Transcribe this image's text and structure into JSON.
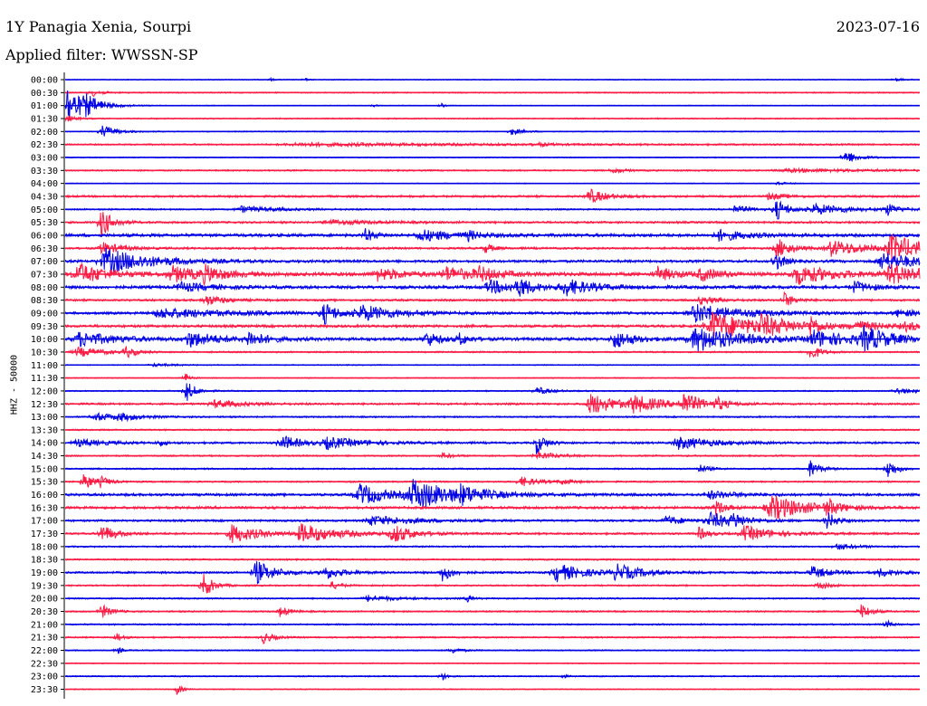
{
  "header": {
    "station": "1Y Panagia Xenia, Sourpi",
    "date": "2023-07-16",
    "filter": "Applied filter: WWSSN-SP"
  },
  "chart_data": {
    "type": "line",
    "title": "1Y Panagia Xenia, Sourpi",
    "date": "2023-07-16",
    "filter": "WWSSN-SP",
    "ylabel": "HHZ - 50000",
    "colors": {
      "even_rows": "#0000e6",
      "odd_rows": "#ff1a44",
      "axis": "#000000"
    },
    "x_span_minutes": 30,
    "traces": [
      {
        "label": "00:00",
        "noise": 0.8,
        "events": [
          [
            0.24,
            2.5,
            0.003
          ],
          [
            0.28,
            2.2,
            0.003
          ],
          [
            0.97,
            2.0,
            0.01
          ]
        ]
      },
      {
        "label": "00:30",
        "noise": 1.2,
        "events": [
          [
            0.03,
            5.0,
            0.01
          ]
        ]
      },
      {
        "label": "01:00",
        "noise": 0.8,
        "events": [
          [
            0.0,
            28.0,
            0.015
          ],
          [
            0.02,
            10.0,
            0.02
          ],
          [
            0.36,
            3.0,
            0.003
          ],
          [
            0.44,
            3.0,
            0.003
          ]
        ]
      },
      {
        "label": "01:30",
        "noise": 1.2,
        "events": [
          [
            0.0,
            4.0,
            0.01
          ]
        ]
      },
      {
        "label": "02:00",
        "noise": 1.0,
        "events": [
          [
            0.04,
            9.0,
            0.015
          ],
          [
            0.52,
            4.5,
            0.012
          ]
        ]
      },
      {
        "label": "02:30",
        "noise": 1.5,
        "events": [
          [
            0.25,
            2.0,
            0.2
          ],
          [
            0.55,
            2.5,
            0.01
          ]
        ]
      },
      {
        "label": "03:00",
        "noise": 1.0,
        "events": [
          [
            0.91,
            9.0,
            0.015
          ]
        ]
      },
      {
        "label": "03:30",
        "noise": 1.5,
        "events": [
          [
            0.64,
            4.0,
            0.01
          ],
          [
            0.83,
            2.0,
            0.1
          ]
        ]
      },
      {
        "label": "04:00",
        "noise": 0.8,
        "events": [
          [
            0.83,
            3.0,
            0.01
          ]
        ]
      },
      {
        "label": "04:30",
        "noise": 2.0,
        "events": [
          [
            0.61,
            10.0,
            0.018
          ],
          [
            0.82,
            4.0,
            0.02
          ]
        ]
      },
      {
        "label": "05:00",
        "noise": 1.5,
        "events": [
          [
            0.83,
            14.0,
            0.012
          ],
          [
            0.2,
            4.0,
            0.04
          ],
          [
            0.87,
            7.0,
            0.04
          ],
          [
            0.96,
            8.0,
            0.012
          ],
          [
            0.78,
            5.0,
            0.02
          ]
        ]
      },
      {
        "label": "05:30",
        "noise": 2.0,
        "events": [
          [
            0.04,
            20.0,
            0.012
          ],
          [
            0.3,
            3.0,
            0.05
          ]
        ]
      },
      {
        "label": "06:00",
        "noise": 3.0,
        "events": [
          [
            0.35,
            8.0,
            0.01
          ],
          [
            0.41,
            7.0,
            0.04
          ],
          [
            0.76,
            7.0,
            0.03
          ],
          [
            0.47,
            5.0,
            0.01
          ]
        ]
      },
      {
        "label": "06:30",
        "noise": 2.0,
        "events": [
          [
            0.04,
            8.0,
            0.02
          ],
          [
            0.83,
            14.0,
            0.015
          ],
          [
            0.89,
            10.0,
            0.04
          ],
          [
            0.96,
            16.0,
            0.04
          ],
          [
            0.49,
            6.0,
            0.01
          ]
        ]
      },
      {
        "label": "07:00",
        "noise": 2.5,
        "events": [
          [
            0.04,
            16.0,
            0.05
          ],
          [
            0.83,
            12.0,
            0.01
          ],
          [
            0.95,
            12.0,
            0.04
          ]
        ]
      },
      {
        "label": "07:30",
        "noise": 3.5,
        "events": [
          [
            0.01,
            14.0,
            0.03
          ],
          [
            0.12,
            10.0,
            0.03
          ],
          [
            0.16,
            9.0,
            0.02
          ],
          [
            0.36,
            8.0,
            0.03
          ],
          [
            0.44,
            9.0,
            0.03
          ],
          [
            0.48,
            8.0,
            0.02
          ],
          [
            0.69,
            9.0,
            0.02
          ],
          [
            0.74,
            8.0,
            0.02
          ],
          [
            0.85,
            12.0,
            0.04
          ],
          [
            0.96,
            12.0,
            0.04
          ]
        ]
      },
      {
        "label": "08:00",
        "noise": 3.0,
        "events": [
          [
            0.13,
            6.0,
            0.03
          ],
          [
            0.49,
            8.0,
            0.04
          ],
          [
            0.53,
            12.0,
            0.01
          ],
          [
            0.58,
            10.0,
            0.03
          ],
          [
            0.92,
            7.0,
            0.02
          ]
        ]
      },
      {
        "label": "08:30",
        "noise": 2.0,
        "events": [
          [
            0.16,
            7.0,
            0.02
          ],
          [
            0.74,
            5.0,
            0.02
          ],
          [
            0.84,
            10.0,
            0.01
          ]
        ]
      },
      {
        "label": "09:00",
        "noise": 2.5,
        "events": [
          [
            0.1,
            6.0,
            0.08
          ],
          [
            0.3,
            14.0,
            0.015
          ],
          [
            0.34,
            10.0,
            0.04
          ],
          [
            0.73,
            12.0,
            0.05
          ],
          [
            0.97,
            4.0,
            0.03
          ]
        ]
      },
      {
        "label": "09:30",
        "noise": 2.5,
        "events": [
          [
            0.75,
            18.0,
            0.05
          ],
          [
            0.81,
            10.0,
            0.03
          ],
          [
            0.87,
            12.0,
            0.01
          ],
          [
            0.92,
            6.0,
            0.03
          ],
          [
            0.98,
            5.0,
            0.02
          ]
        ]
      },
      {
        "label": "10:00",
        "noise": 3.0,
        "events": [
          [
            0.01,
            9.0,
            0.04
          ],
          [
            0.14,
            10.0,
            0.03
          ],
          [
            0.21,
            10.0,
            0.02
          ],
          [
            0.42,
            10.0,
            0.015
          ],
          [
            0.46,
            7.0,
            0.01
          ],
          [
            0.64,
            12.0,
            0.02
          ],
          [
            0.73,
            16.0,
            0.05
          ],
          [
            0.87,
            10.0,
            0.04
          ],
          [
            0.93,
            14.0,
            0.03
          ]
        ]
      },
      {
        "label": "10:30",
        "noise": 1.5,
        "events": [
          [
            0.01,
            6.0,
            0.03
          ],
          [
            0.07,
            7.0,
            0.01
          ],
          [
            0.87,
            12.0,
            0.01
          ]
        ]
      },
      {
        "label": "11:00",
        "noise": 1.0,
        "events": [
          [
            0.1,
            2.0,
            0.02
          ]
        ]
      },
      {
        "label": "11:30",
        "noise": 1.0,
        "events": [
          [
            0.14,
            8.0,
            0.005
          ]
        ]
      },
      {
        "label": "12:00",
        "noise": 1.2,
        "events": [
          [
            0.14,
            14.0,
            0.01
          ],
          [
            0.55,
            5.0,
            0.015
          ],
          [
            0.97,
            4.0,
            0.02
          ]
        ]
      },
      {
        "label": "12:30",
        "noise": 2.0,
        "events": [
          [
            0.17,
            5.0,
            0.03
          ],
          [
            0.61,
            14.0,
            0.03
          ],
          [
            0.66,
            10.0,
            0.03
          ],
          [
            0.72,
            14.0,
            0.02
          ],
          [
            0.76,
            8.0,
            0.01
          ]
        ]
      },
      {
        "label": "13:00",
        "noise": 1.5,
        "events": [
          [
            0.03,
            5.0,
            0.03
          ],
          [
            0.06,
            4.0,
            0.02
          ]
        ]
      },
      {
        "label": "13:30",
        "noise": 1.5,
        "events": []
      },
      {
        "label": "14:00",
        "noise": 2.0,
        "events": [
          [
            0.01,
            5.0,
            0.03
          ],
          [
            0.25,
            10.0,
            0.02
          ],
          [
            0.3,
            7.0,
            0.04
          ],
          [
            0.55,
            14.0,
            0.01
          ],
          [
            0.71,
            8.0,
            0.04
          ],
          [
            0.11,
            5.0,
            0.005
          ]
        ]
      },
      {
        "label": "14:30",
        "noise": 1.5,
        "events": [
          [
            0.44,
            4.0,
            0.01
          ],
          [
            0.55,
            5.0,
            0.02
          ]
        ]
      },
      {
        "label": "15:00",
        "noise": 1.5,
        "events": [
          [
            0.74,
            6.0,
            0.01
          ],
          [
            0.87,
            12.0,
            0.01
          ],
          [
            0.96,
            14.0,
            0.01
          ]
        ]
      },
      {
        "label": "15:30",
        "noise": 1.5,
        "events": [
          [
            0.02,
            12.0,
            0.01
          ],
          [
            0.04,
            6.0,
            0.01
          ],
          [
            0.53,
            6.0,
            0.02
          ],
          [
            0.58,
            4.0,
            0.01
          ]
        ]
      },
      {
        "label": "16:00",
        "noise": 2.5,
        "events": [
          [
            0.34,
            14.0,
            0.03
          ],
          [
            0.4,
            18.0,
            0.05
          ],
          [
            0.46,
            8.0,
            0.02
          ],
          [
            0.75,
            5.0,
            0.03
          ]
        ]
      },
      {
        "label": "16:30",
        "noise": 2.5,
        "events": [
          [
            0.76,
            10.0,
            0.01
          ],
          [
            0.82,
            16.0,
            0.04
          ],
          [
            0.89,
            12.0,
            0.01
          ]
        ]
      },
      {
        "label": "17:00",
        "noise": 2.0,
        "events": [
          [
            0.35,
            6.0,
            0.05
          ],
          [
            0.7,
            6.0,
            0.02
          ],
          [
            0.75,
            10.0,
            0.03
          ],
          [
            0.78,
            8.0,
            0.01
          ],
          [
            0.89,
            12.0,
            0.01
          ]
        ]
      },
      {
        "label": "17:30",
        "noise": 2.0,
        "events": [
          [
            0.04,
            12.0,
            0.015
          ],
          [
            0.19,
            12.0,
            0.03
          ],
          [
            0.27,
            12.0,
            0.04
          ],
          [
            0.38,
            12.0,
            0.02
          ],
          [
            0.74,
            8.0,
            0.01
          ],
          [
            0.79,
            10.0,
            0.03
          ]
        ]
      },
      {
        "label": "18:00",
        "noise": 1.5,
        "events": [
          [
            0.9,
            4.0,
            0.02
          ]
        ]
      },
      {
        "label": "18:30",
        "noise": 1.5,
        "events": []
      },
      {
        "label": "19:00",
        "noise": 2.0,
        "events": [
          [
            0.22,
            16.0,
            0.02
          ],
          [
            0.3,
            8.0,
            0.02
          ],
          [
            0.44,
            12.0,
            0.01
          ],
          [
            0.57,
            12.0,
            0.03
          ],
          [
            0.64,
            10.0,
            0.03
          ],
          [
            0.87,
            8.0,
            0.02
          ],
          [
            0.95,
            5.0,
            0.02
          ]
        ]
      },
      {
        "label": "19:30",
        "noise": 1.5,
        "events": [
          [
            0.16,
            18.0,
            0.01
          ],
          [
            0.31,
            5.0,
            0.01
          ],
          [
            0.88,
            6.0,
            0.01
          ]
        ]
      },
      {
        "label": "20:00",
        "noise": 1.5,
        "events": [
          [
            0.35,
            4.0,
            0.03
          ],
          [
            0.47,
            5.0,
            0.005
          ]
        ]
      },
      {
        "label": "20:30",
        "noise": 1.5,
        "events": [
          [
            0.04,
            10.0,
            0.01
          ],
          [
            0.25,
            7.0,
            0.01
          ],
          [
            0.93,
            10.0,
            0.01
          ]
        ]
      },
      {
        "label": "21:00",
        "noise": 1.5,
        "events": [
          [
            0.96,
            6.0,
            0.005
          ]
        ]
      },
      {
        "label": "21:30",
        "noise": 1.5,
        "events": [
          [
            0.06,
            8.0,
            0.005
          ],
          [
            0.23,
            8.0,
            0.01
          ]
        ]
      },
      {
        "label": "22:00",
        "noise": 1.2,
        "events": [
          [
            0.06,
            5.0,
            0.005
          ],
          [
            0.45,
            4.0,
            0.01
          ]
        ]
      },
      {
        "label": "22:30",
        "noise": 1.0,
        "events": []
      },
      {
        "label": "23:00",
        "noise": 1.2,
        "events": [
          [
            0.44,
            6.0,
            0.005
          ],
          [
            0.58,
            3.0,
            0.005
          ]
        ]
      },
      {
        "label": "23:30",
        "noise": 1.0,
        "events": [
          [
            0.13,
            8.0,
            0.005
          ]
        ]
      }
    ]
  }
}
